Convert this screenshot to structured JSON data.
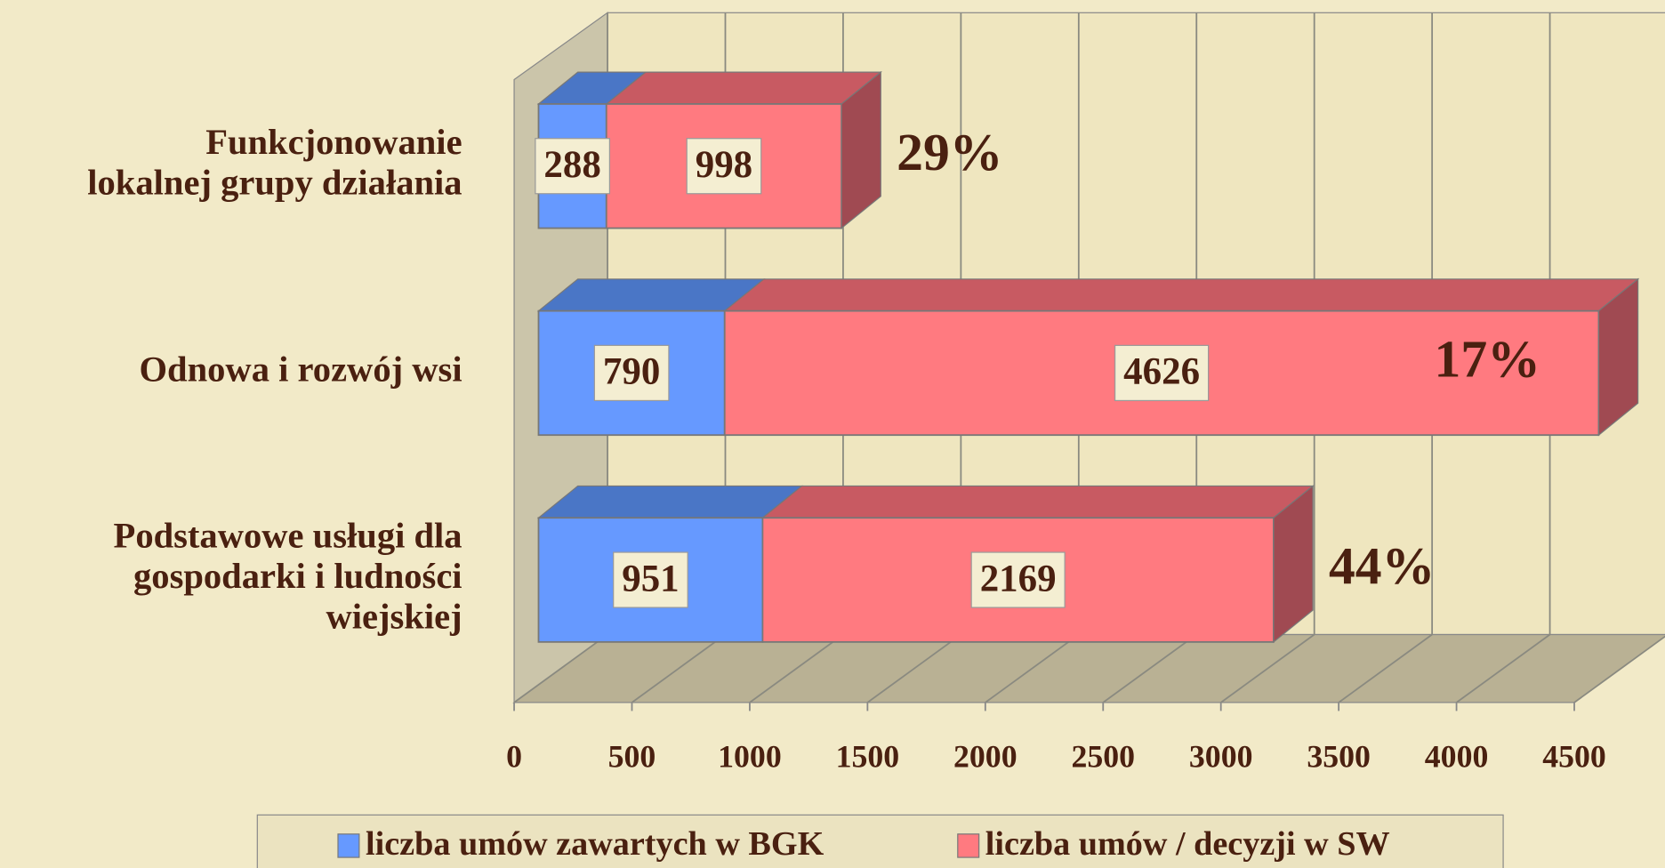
{
  "chart_data": {
    "type": "stacked-bar-3d",
    "categories": [
      "Funkcjonowanie\nlokalnej grupy działania",
      "Odnowa i rozwój wsi",
      "Podstawowe usługi dla\ngospodarki i ludności\nwiejskiej"
    ],
    "series": [
      {
        "name": "liczba umów zawartych w BGK",
        "color": "#6699ff",
        "values": [
          288,
          790,
          951
        ]
      },
      {
        "name": "liczba umów / decyzji w SW",
        "color": "#ff7a80",
        "values": [
          998,
          4626,
          2169
        ]
      }
    ],
    "annotations": [
      {
        "category": 0,
        "text": "29%"
      },
      {
        "category": 1,
        "text": "17%"
      },
      {
        "category": 2,
        "text": "44%"
      }
    ],
    "xlim": [
      0,
      4500
    ],
    "xticks": [
      0,
      500,
      1000,
      1500,
      2000,
      2500,
      3000,
      3500,
      4000,
      4500
    ],
    "grid": true,
    "legend": "bottom"
  }
}
